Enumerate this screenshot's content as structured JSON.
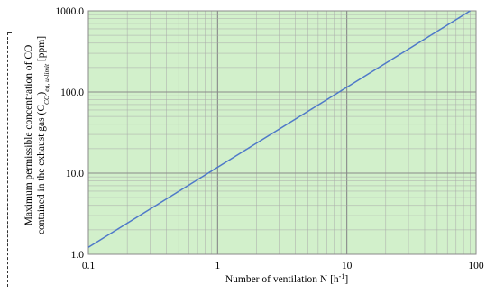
{
  "colors": {
    "background": "#ffffff",
    "plot_area": "#d2f0cb",
    "major_grid": "#8a8a8a",
    "minor_grid": "#a9a9a9",
    "line": "#4f79c9"
  },
  "chart_data": {
    "type": "line",
    "xscale": "log",
    "yscale": "log",
    "xlim": [
      0.1,
      100
    ],
    "ylim": [
      1.0,
      1000.0
    ],
    "x_ticks": [
      0.1,
      1,
      10,
      100
    ],
    "y_ticks": [
      1.0,
      10.0,
      100.0,
      1000.0
    ],
    "x_tick_labels": [
      "0.1",
      "1",
      "10",
      "100"
    ],
    "y_tick_labels": [
      "1.0",
      "10.0",
      "100.0",
      "1000.0"
    ],
    "xlabel": "Number of ventilation N [h",
    "xlabel_sup": "-1",
    "xlabel_end": "]",
    "ylabel_line1": "Maximum permissible concentration of CO",
    "ylabel_line2_a": "contained in the exhaust gas (C",
    "ylabel_line2_sub1": "CO",
    "ylabel_line2_b": ")",
    "ylabel_line2_sub2": "eg, u-limit",
    "ylabel_line2_c": " [ppm]",
    "grid": true,
    "minor_grid": true,
    "legend": false,
    "series": [
      {
        "x": [
          0.1,
          90
        ],
        "y": [
          1.22,
          1000.0
        ]
      }
    ]
  }
}
